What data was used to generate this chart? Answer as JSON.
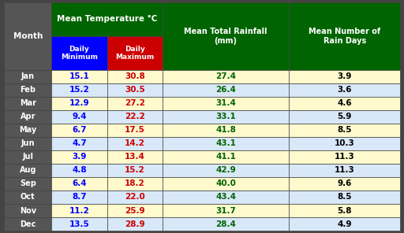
{
  "months": [
    "Jan",
    "Feb",
    "Mar",
    "Apr",
    "May",
    "Jun",
    "Jul",
    "Aug",
    "Sep",
    "Oct",
    "Nov",
    "Dec"
  ],
  "daily_min": [
    15.1,
    15.2,
    12.9,
    9.4,
    6.7,
    4.7,
    3.9,
    4.8,
    6.4,
    8.7,
    11.2,
    13.5
  ],
  "daily_max": [
    30.8,
    30.5,
    27.2,
    22.2,
    17.5,
    14.2,
    13.4,
    15.2,
    18.2,
    22.0,
    25.9,
    28.9
  ],
  "rainfall": [
    27.4,
    26.4,
    31.4,
    33.1,
    41.8,
    43.1,
    41.1,
    42.9,
    40.0,
    43.4,
    31.7,
    28.4
  ],
  "rain_days": [
    3.9,
    3.6,
    4.6,
    5.9,
    8.5,
    10.3,
    11.3,
    11.3,
    9.6,
    8.5,
    5.8,
    4.9
  ],
  "header_bg": "#006400",
  "subheader_min_bg": "#0000FF",
  "subheader_max_bg": "#CC0000",
  "month_col_bg": "#555555",
  "month_text_color": "#FFFFFF",
  "row_bg_odd": "#FFFACD",
  "row_bg_even": "#D8E8F8",
  "min_text_color": "#0000FF",
  "max_text_color": "#CC0000",
  "rainfall_text_color": "#006400",
  "raindays_text_color": "#000000",
  "header_text_color": "#FFFFFF",
  "border_color": "#444444",
  "title_temp_color": "#FFFF00",
  "superscript_color": "#FFFF00"
}
